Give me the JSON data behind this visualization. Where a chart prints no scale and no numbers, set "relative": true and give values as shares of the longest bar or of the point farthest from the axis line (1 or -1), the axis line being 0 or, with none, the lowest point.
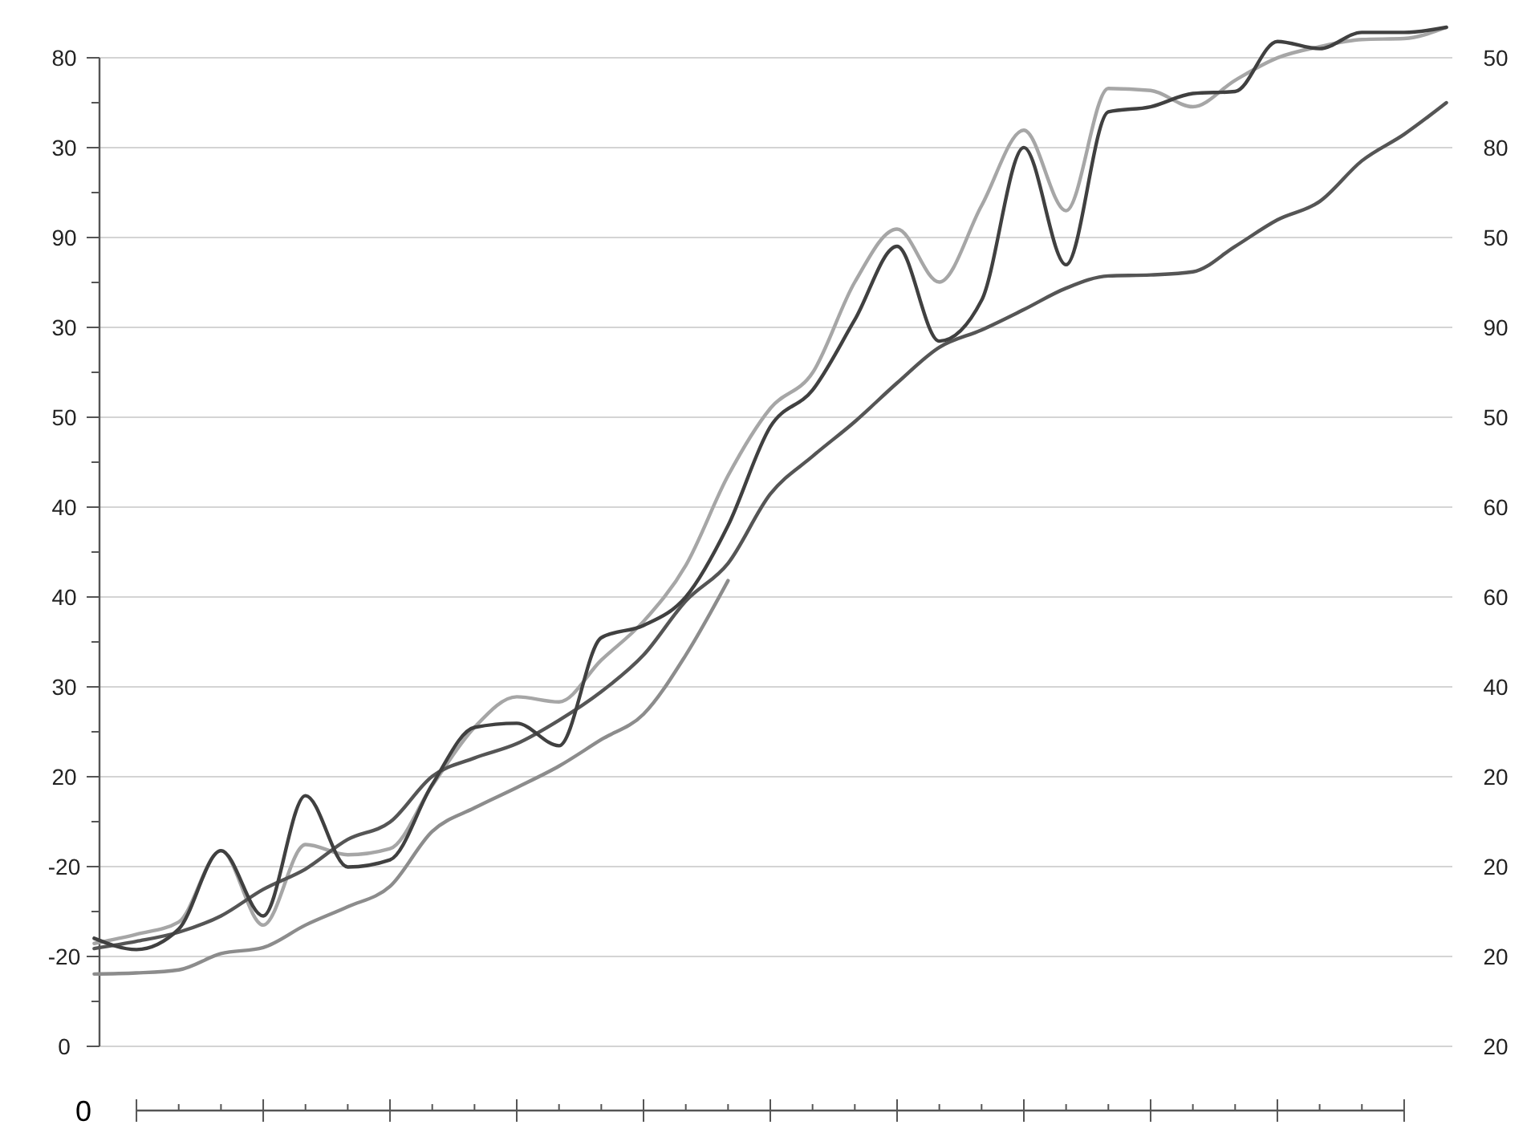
{
  "chart_data": {
    "type": "line",
    "relative": true,
    "categories": [
      null,
      null,
      null,
      null,
      null,
      null,
      null,
      null,
      null,
      null,
      null,
      null,
      null,
      null,
      null,
      null,
      null,
      null,
      null,
      null,
      null,
      null,
      null,
      null,
      null,
      null,
      null,
      null,
      null,
      null,
      null,
      null,
      null
    ],
    "grid": "y",
    "line_style": "solid",
    "marker": "none",
    "annotations": [
      "80",
      "30",
      "90",
      "30",
      "50",
      "40",
      "40",
      "30",
      "20",
      "-20",
      "-20",
      "0",
      "50",
      "80",
      "50",
      "90",
      "50",
      "60",
      "60",
      "40",
      "20",
      "20",
      "20",
      "20",
      "0"
    ],
    "series": [
      {
        "color": "#a6a6a6",
        "values": [
          0.101,
          0.11,
          0.122,
          0.192,
          0.119,
          0.198,
          0.188,
          0.194,
          0.256,
          0.313,
          0.343,
          0.338,
          0.379,
          0.417,
          0.472,
          0.56,
          0.626,
          0.661,
          0.75,
          0.802,
          0.75,
          0.825,
          0.899,
          0.82,
          0.94,
          0.938,
          0.922,
          0.948,
          0.97,
          0.981,
          0.988,
          0.989,
          1.0
        ]
      },
      {
        "color": "#8c8c8c",
        "values": [
          0.071,
          0.072,
          0.075,
          0.091,
          0.097,
          0.119,
          0.137,
          0.157,
          0.211,
          0.234,
          0.254,
          0.275,
          0.301,
          0.326,
          0.384,
          0.457,
          null,
          null,
          null,
          null,
          null,
          null,
          null,
          null,
          null,
          null,
          null,
          null,
          null,
          null,
          null,
          null,
          null
        ]
      },
      {
        "color": "#555555",
        "values": [
          0.096,
          0.103,
          0.112,
          0.128,
          0.154,
          0.174,
          0.203,
          0.22,
          0.265,
          0.283,
          0.297,
          0.32,
          0.348,
          0.384,
          0.437,
          0.474,
          0.542,
          0.579,
          0.613,
          0.651,
          0.686,
          0.703,
          0.723,
          0.744,
          0.756,
          0.757,
          0.76,
          0.785,
          0.811,
          0.829,
          0.869,
          0.895,
          0.926
        ]
      },
      {
        "color": "#404040",
        "values": [
          0.106,
          0.095,
          0.115,
          0.192,
          0.128,
          0.246,
          0.176,
          0.183,
          0.257,
          0.313,
          0.317,
          0.295,
          0.401,
          0.413,
          0.441,
          0.511,
          0.608,
          0.644,
          0.713,
          0.785,
          0.692,
          0.732,
          0.882,
          0.767,
          0.917,
          0.922,
          0.935,
          0.937,
          0.986,
          0.979,
          0.995,
          0.995,
          1.0
        ]
      }
    ]
  }
}
